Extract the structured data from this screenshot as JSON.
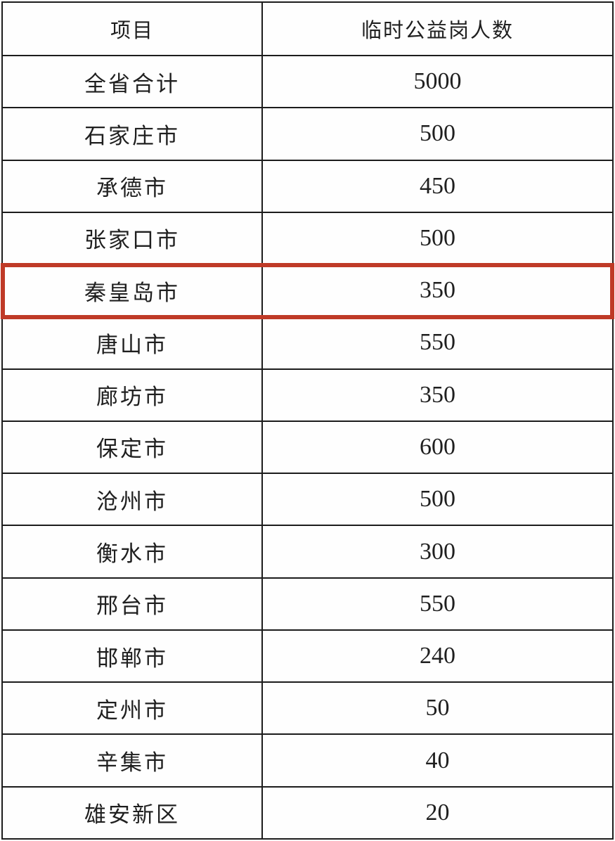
{
  "table": {
    "columns": [
      {
        "label": "项目"
      },
      {
        "label": "临时公益岗人数"
      }
    ],
    "rows": [
      {
        "label": "全省合计",
        "value": "5000"
      },
      {
        "label": "石家庄市",
        "value": "500"
      },
      {
        "label": "承德市",
        "value": "450"
      },
      {
        "label": "张家口市",
        "value": "500"
      },
      {
        "label": "秦皇岛市",
        "value": "350",
        "highlighted": true
      },
      {
        "label": "唐山市",
        "value": "550"
      },
      {
        "label": "廊坊市",
        "value": "350"
      },
      {
        "label": "保定市",
        "value": "600"
      },
      {
        "label": "沧州市",
        "value": "500"
      },
      {
        "label": "衡水市",
        "value": "300"
      },
      {
        "label": "邢台市",
        "value": "550"
      },
      {
        "label": "邯郸市",
        "value": "240"
      },
      {
        "label": "定州市",
        "value": "50"
      },
      {
        "label": "辛集市",
        "value": "40"
      },
      {
        "label": "雄安新区",
        "value": "20"
      }
    ],
    "highlight_color": "#bf3a27",
    "border_color": "#1c1c1c"
  }
}
